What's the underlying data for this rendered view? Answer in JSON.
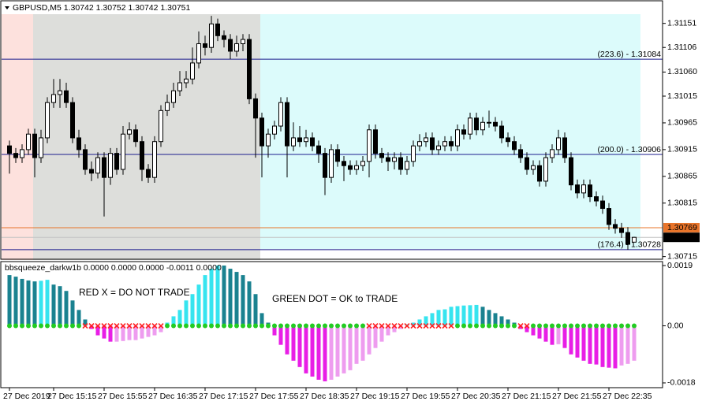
{
  "chart_data": [
    {
      "type": "candlestick",
      "header": "GBPUSD,M5  1.30742 1.30752 1.30742 1.30751",
      "categories": [
        "27 Dec 2019",
        null,
        null,
        null,
        null,
        null,
        null,
        "27 Dec 15:15",
        null,
        null,
        null,
        null,
        null,
        null,
        null,
        "27 Dec 15:55",
        null,
        null,
        null,
        null,
        null,
        null,
        null,
        "27 Dec 16:35",
        null,
        null,
        null,
        null,
        null,
        null,
        null,
        "27 Dec 17:15",
        null,
        null,
        null,
        null,
        null,
        null,
        null,
        "27 Dec 17:55",
        null,
        null,
        null,
        null,
        null,
        null,
        null,
        "27 Dec 18:35",
        null,
        null,
        null,
        null,
        null,
        null,
        null,
        "27 Dec 19:15",
        null,
        null,
        null,
        null,
        null,
        null,
        null,
        "27 Dec 19:55",
        null,
        null,
        null,
        null,
        null,
        null,
        null,
        "27 Dec 20:35",
        null,
        null,
        null,
        null,
        null,
        null,
        null,
        "27 Dec 21:15",
        null,
        null,
        null,
        null,
        null,
        null,
        null,
        "27 Dec 21:55",
        null,
        null,
        null,
        null,
        null,
        null,
        null,
        "27 Dec 22:35",
        null,
        null,
        null,
        null
      ],
      "open": [
        1.30922,
        1.30908,
        1.309,
        1.30915,
        1.30944,
        1.309,
        1.30937,
        1.31003,
        1.31018,
        1.31025,
        1.31003,
        1.30937,
        1.30915,
        1.30878,
        1.30871,
        1.309,
        1.30863,
        1.30908,
        1.30878,
        1.30944,
        1.30952,
        1.3093,
        1.30878,
        1.30863,
        1.3093,
        1.30988,
        1.31003,
        1.31025,
        1.3104,
        1.31047,
        1.31077,
        1.31113,
        1.31106,
        1.3115,
        1.31128,
        1.31121,
        1.31099,
        1.31113,
        1.31121,
        1.3101,
        1.30974,
        1.30922,
        1.30944,
        1.30959,
        1.31003,
        1.30922,
        1.30937,
        1.3093,
        1.30937,
        1.30922,
        1.30908,
        1.30863,
        1.30915,
        1.30893,
        1.30885,
        1.30878,
        1.30885,
        1.30893,
        1.30952,
        1.30908,
        1.309,
        1.30893,
        1.309,
        1.30878,
        1.30893,
        1.30922,
        1.3093,
        1.30937,
        1.30915,
        1.30922,
        1.3093,
        1.30922,
        1.30952,
        1.30944,
        1.30974,
        1.30952,
        1.30966,
        1.30966,
        1.30959,
        1.30937,
        1.3093,
        1.30915,
        1.309,
        1.30878,
        1.30885,
        1.30856,
        1.309,
        1.30915,
        1.30937,
        1.309,
        1.30849,
        1.30834,
        1.30849,
        1.30827,
        1.30819,
        1.30805,
        1.30775,
        1.30768,
        1.3076,
        1.30742
      ],
      "high": [
        1.30932,
        1.30918,
        1.30925,
        1.30954,
        1.30954,
        1.30952,
        1.31013,
        1.31047,
        1.31047,
        1.3104,
        1.31013,
        1.30952,
        1.30925,
        1.30893,
        1.3091,
        1.3091,
        1.30918,
        1.30918,
        1.30959,
        1.30966,
        1.30962,
        1.3094,
        1.30888,
        1.3094,
        1.30998,
        1.31018,
        1.3104,
        1.31062,
        1.31062,
        1.31106,
        1.31136,
        1.31128,
        1.31165,
        1.3116,
        1.31138,
        1.31131,
        1.31128,
        1.31131,
        1.31131,
        1.3102,
        1.30984,
        1.30954,
        1.30969,
        1.31013,
        1.31013,
        1.30966,
        1.30959,
        1.30952,
        1.30947,
        1.30932,
        1.30918,
        1.30925,
        1.30925,
        1.30903,
        1.30895,
        1.30895,
        1.30903,
        1.30962,
        1.30962,
        1.30918,
        1.3091,
        1.3091,
        1.3091,
        1.30903,
        1.30932,
        1.30944,
        1.30947,
        1.30947,
        1.30932,
        1.3094,
        1.3094,
        1.30962,
        1.30962,
        1.30984,
        1.30984,
        1.30976,
        1.30988,
        1.30976,
        1.30969,
        1.30947,
        1.3094,
        1.30925,
        1.3091,
        1.30895,
        1.30895,
        1.3091,
        1.30925,
        1.30952,
        1.30947,
        1.3091,
        1.30859,
        1.30859,
        1.30859,
        1.30837,
        1.30829,
        1.30815,
        1.30785,
        1.30778,
        1.3077,
        1.30752
      ],
      "low": [
        1.3087,
        1.3089,
        1.3089,
        1.30905,
        1.30863,
        1.3089,
        1.30927,
        1.30993,
        1.30993,
        1.30993,
        1.30927,
        1.309,
        1.30868,
        1.30856,
        1.30861,
        1.3079,
        1.30849,
        1.30868,
        1.30868,
        1.30934,
        1.3092,
        1.30856,
        1.30853,
        1.30853,
        1.3092,
        1.30978,
        1.30993,
        1.31015,
        1.3103,
        1.31037,
        1.31067,
        1.31091,
        1.31096,
        1.31118,
        1.31106,
        1.31084,
        1.31089,
        1.31099,
        1.31,
        1.309,
        1.30863,
        1.309,
        1.30934,
        1.30949,
        1.30863,
        1.30912,
        1.3092,
        1.3092,
        1.30912,
        1.3089,
        1.3083,
        1.30853,
        1.30883,
        1.30856,
        1.30868,
        1.30868,
        1.30875,
        1.30863,
        1.30898,
        1.3089,
        1.30875,
        1.30878,
        1.30868,
        1.30868,
        1.30883,
        1.30912,
        1.3092,
        1.30905,
        1.30905,
        1.30912,
        1.30912,
        1.30912,
        1.30934,
        1.30934,
        1.30942,
        1.30942,
        1.30956,
        1.30949,
        1.30927,
        1.3092,
        1.30905,
        1.3089,
        1.30868,
        1.30868,
        1.30846,
        1.30846,
        1.3089,
        1.30905,
        1.3089,
        1.30839,
        1.30824,
        1.30824,
        1.30817,
        1.30809,
        1.30795,
        1.30765,
        1.30758,
        1.3075,
        1.30728,
        1.30742
      ],
      "close": [
        1.30908,
        1.309,
        1.30915,
        1.30944,
        1.309,
        1.30937,
        1.31003,
        1.31018,
        1.31025,
        1.31003,
        1.30937,
        1.30915,
        1.30878,
        1.30871,
        1.309,
        1.30863,
        1.30908,
        1.30878,
        1.30944,
        1.30952,
        1.3093,
        1.30878,
        1.30863,
        1.3093,
        1.30988,
        1.31003,
        1.31025,
        1.3104,
        1.31047,
        1.31077,
        1.31113,
        1.31106,
        1.3115,
        1.31128,
        1.31121,
        1.31099,
        1.31113,
        1.31121,
        1.3101,
        1.30974,
        1.30922,
        1.30944,
        1.30959,
        1.31003,
        1.30922,
        1.30937,
        1.3093,
        1.30937,
        1.30922,
        1.30908,
        1.30863,
        1.30915,
        1.30893,
        1.30885,
        1.30878,
        1.30885,
        1.30893,
        1.30952,
        1.30908,
        1.309,
        1.30893,
        1.309,
        1.30878,
        1.30893,
        1.30922,
        1.3093,
        1.30937,
        1.30915,
        1.30922,
        1.3093,
        1.30922,
        1.30952,
        1.30944,
        1.30974,
        1.30952,
        1.30966,
        1.30966,
        1.30959,
        1.30937,
        1.3093,
        1.30915,
        1.309,
        1.30878,
        1.30885,
        1.30856,
        1.309,
        1.30915,
        1.30937,
        1.309,
        1.30849,
        1.30834,
        1.30849,
        1.30827,
        1.30819,
        1.30805,
        1.30775,
        1.30768,
        1.3076,
        1.30738,
        1.30751
      ],
      "ylim": [
        1.30713,
        1.3118
      ],
      "yticks": [
        1.31151,
        1.31106,
        {
          "value": 1.3106,
          "label": "1.31060"
        },
        1.31015,
        1.30965,
        1.30915,
        1.30865,
        1.30815,
        1.30715
      ],
      "levels": [
        {
          "label": "(223.6) - 1.31084",
          "value": 1.31084
        },
        {
          "label": "(200.0) - 1.30906",
          "value": 1.30906
        },
        {
          "label": "(176.4) - 1.30728",
          "value": 1.30728
        }
      ],
      "level_color": "#1c1c8c",
      "price_lines": [
        {
          "value": 1.30769,
          "line_color": "#e8742a",
          "box_color": "#e8742a"
        },
        {
          "value": 1.30751,
          "line_color": "#c4c4c4",
          "box_color": "#000000"
        }
      ]
    },
    {
      "type": "bar",
      "name": "bbsqueeze_darkw1b 0.0000 0.0000 0.0000 -0.0011 0.0000",
      "values": [
        0.0016,
        0.00155,
        0.00148,
        0.00143,
        0.0014,
        0.00142,
        0.00145,
        0.0013,
        0.00125,
        0.0011,
        0.0008,
        0.0005,
        0.0002,
        -0.0001,
        -0.0003,
        -0.0004,
        -0.0005,
        -0.0005,
        -0.00048,
        -0.00045,
        -0.00045,
        -0.0004,
        -0.00035,
        -0.0003,
        -0.0002,
        0.0001,
        0.0003,
        0.0005,
        0.0008,
        0.001,
        0.0013,
        0.0016,
        0.0018,
        0.0019,
        0.0019,
        0.0018,
        0.0017,
        0.0016,
        0.0014,
        0.001,
        0.0004,
        0.0001,
        -0.0003,
        -0.0006,
        -0.0009,
        -0.0011,
        -0.0013,
        -0.0015,
        -0.0016,
        -0.0017,
        -0.00175,
        -0.0017,
        -0.0016,
        -0.0015,
        -0.0014,
        -0.0012,
        -0.0011,
        -0.0009,
        -0.0007,
        -0.0005,
        -0.0003,
        -0.0002,
        -0.0001,
        5e-05,
        0.0001,
        0.0002,
        0.0003,
        0.0004,
        0.0005,
        0.00052,
        0.0006,
        0.00062,
        0.00064,
        0.00065,
        0.00066,
        0.0006,
        0.0005,
        0.0004,
        0.0003,
        0.0002,
        0.0001,
        -0.0001,
        -0.0002,
        -0.0003,
        -0.0004,
        -0.0005,
        -0.0006,
        -0.00058,
        -0.0007,
        -0.0009,
        -0.001,
        -0.0011,
        -0.0012,
        -0.00122,
        -0.0013,
        -0.00132,
        -0.00134,
        -0.00125,
        -0.0012,
        -0.0011
      ],
      "squeeze": [
        0,
        0,
        0,
        0,
        0,
        0,
        0,
        0,
        0,
        0,
        0,
        0,
        1,
        1,
        1,
        1,
        1,
        1,
        1,
        1,
        1,
        1,
        1,
        1,
        1,
        0,
        0,
        0,
        0,
        0,
        0,
        0,
        0,
        0,
        0,
        0,
        0,
        0,
        0,
        0,
        0,
        0,
        0,
        0,
        0,
        0,
        0,
        0,
        0,
        0,
        0,
        0,
        0,
        0,
        0,
        0,
        0,
        1,
        1,
        1,
        1,
        1,
        1,
        1,
        1,
        1,
        1,
        1,
        1,
        1,
        1,
        0,
        0,
        0,
        0,
        0,
        0,
        0,
        0,
        0,
        0,
        1,
        1,
        0,
        0,
        0,
        0,
        0,
        0,
        0,
        0,
        0,
        0,
        0,
        0,
        0,
        0,
        0,
        0,
        0
      ],
      "annotations": [
        {
          "text": "RED X = DO NOT TRADE",
          "color": "#e8383c"
        },
        {
          "text": "GREEN DOT = OK  to  TRADE",
          "color": "#2e9a2e"
        }
      ],
      "ylim": [
        -0.00195,
        0.002
      ],
      "yticks": [
        0.0019,
        {
          "value": 0,
          "label": "0.00"
        },
        -0.0018
      ],
      "colors": {
        "positive_rising": "#36e4ef",
        "positive_falling": "#1a8290",
        "negative_falling": "#e81ee6",
        "negative_rising": "#ee9cef",
        "ok_dot": "#22cc22",
        "squeeze_x": "#ff2020"
      }
    }
  ]
}
